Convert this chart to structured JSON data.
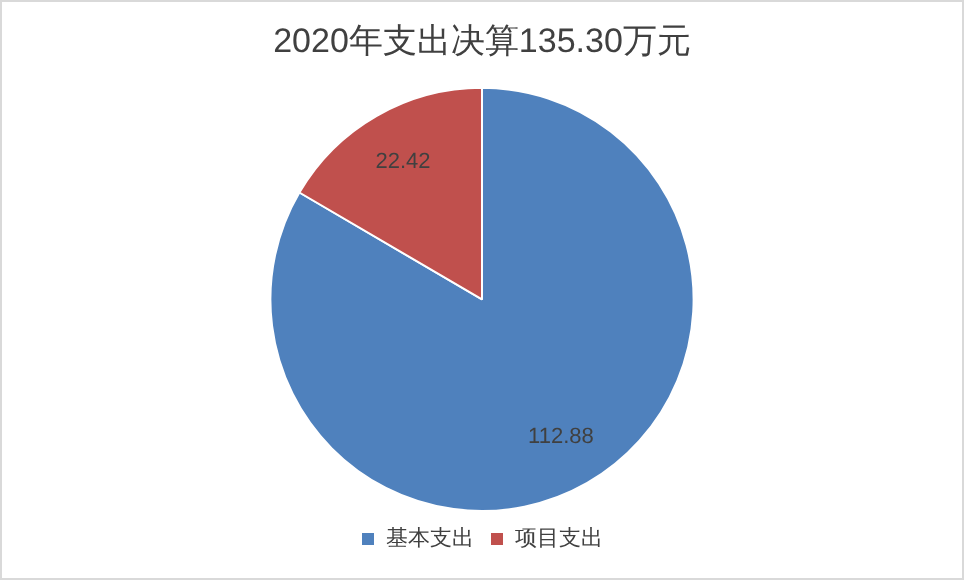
{
  "chart_data": {
    "type": "pie",
    "title": "2020年支出决算135.30万元",
    "categories": [
      "基本支出",
      "项目支出"
    ],
    "values": [
      112.88,
      22.42
    ],
    "colors": [
      "#4f81bd",
      "#c0504d"
    ],
    "data_labels": true,
    "legend": "bottom"
  }
}
